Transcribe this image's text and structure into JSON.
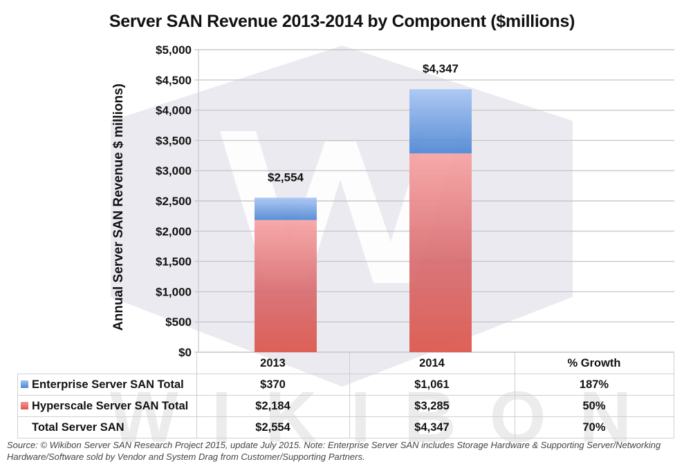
{
  "chart_data": {
    "type": "bar",
    "stacked": true,
    "title": "Server SAN Revenue 2013-2014 by Component ($millions)",
    "xlabel": "",
    "ylabel": "Annual Server SAN Revenue $ millions)",
    "ylim": [
      0,
      5000
    ],
    "yticks": [
      0,
      500,
      1000,
      1500,
      2000,
      2500,
      3000,
      3500,
      4000,
      4500,
      5000
    ],
    "ytick_labels": [
      "$0",
      "$500",
      "$1,000",
      "$1,500",
      "$2,000",
      "$2,500",
      "$3,000",
      "$3,500",
      "$4,000",
      "$4,500",
      "$5,000"
    ],
    "grid": true,
    "categories": [
      "2013",
      "2014"
    ],
    "series": [
      {
        "name": "Hyperscale Server SAN Total",
        "values": [
          2184,
          3285
        ],
        "color": "#e0585a"
      },
      {
        "name": "Enterprise Server SAN Total",
        "values": [
          370,
          1061
        ],
        "color": "#5b94de"
      }
    ],
    "totals": [
      2554,
      4347
    ],
    "total_labels": [
      "$2,554",
      "$4,347"
    ]
  },
  "table": {
    "header": [
      "2013",
      "2014",
      "% Growth"
    ],
    "rows": [
      {
        "label": "Enterprise Server SAN Total",
        "swatch": "#5b94de",
        "values": [
          "$370",
          "$1,061",
          "187%"
        ]
      },
      {
        "label": "Hyperscale Server SAN Total",
        "swatch": "#e0585a",
        "values": [
          "$2,184",
          "$3,285",
          "50%"
        ]
      },
      {
        "label": "Total Server SAN",
        "swatch": "",
        "values": [
          "$2,554",
          "$4,347",
          "70%"
        ]
      }
    ]
  },
  "watermark": {
    "letters": "WIKIBON",
    "logo": "W"
  },
  "source_note": "Source: © Wikibon Server SAN Research Project 2015, update July 2015. Note: Enterprise Server SAN includes Storage Hardware & Supporting Server/Networking Hardware/Software sold by Vendor and System Drag from Customer/Supporting Partners."
}
